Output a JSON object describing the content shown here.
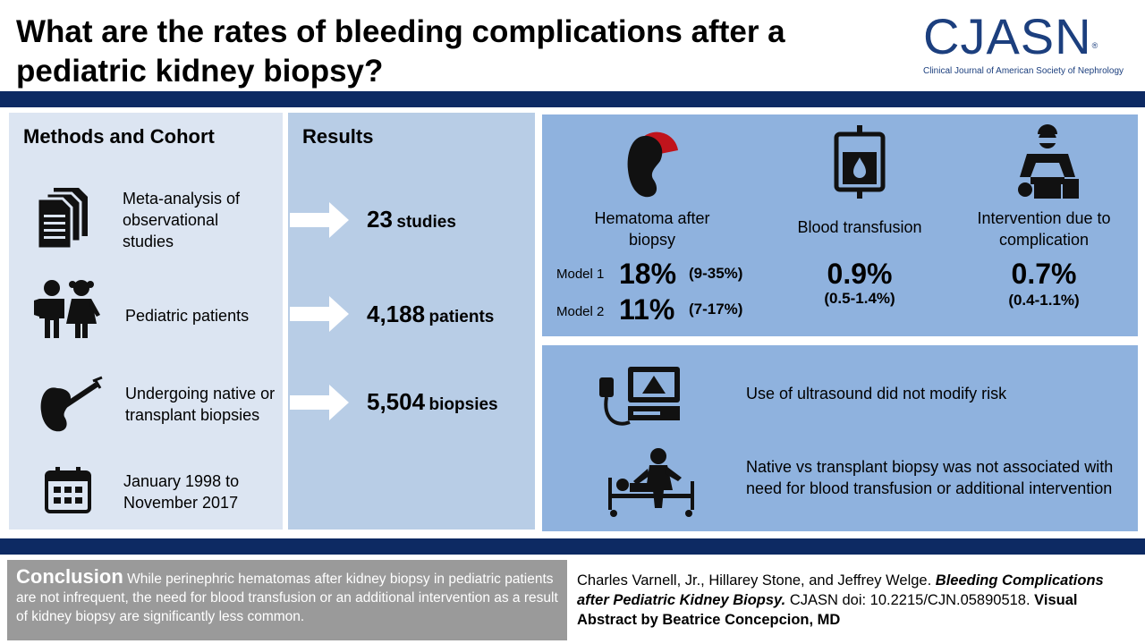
{
  "header": {
    "title": "What are the rates of bleeding complications after a pediatric kidney biopsy?",
    "logo_text": "CJASN",
    "logo_reg": "®",
    "logo_subtitle": "Clinical Journal of American Society of Nephrology"
  },
  "methods": {
    "heading": "Methods and Cohort",
    "items": [
      {
        "icon": "documents-icon",
        "text": "Meta-analysis of observational studies"
      },
      {
        "icon": "children-icon",
        "text": "Pediatric patients"
      },
      {
        "icon": "kidney-needle-icon",
        "text": "Undergoing native or transplant biopsies"
      },
      {
        "icon": "calendar-icon",
        "text": "January 1998 to November 2017"
      }
    ]
  },
  "results": {
    "heading": "Results",
    "items": [
      {
        "number": "23",
        "unit": "studies"
      },
      {
        "number": "4,188",
        "unit": "patients"
      },
      {
        "number": "5,504",
        "unit": "biopsies"
      }
    ]
  },
  "stats": {
    "hematoma": {
      "label": "Hematoma after biopsy",
      "icon": "kidney-hematoma-icon",
      "models": [
        {
          "label": "Model 1",
          "pct": "18%",
          "ci": "(9-35%)"
        },
        {
          "label": "Model 2",
          "pct": "11%",
          "ci": "(7-17%)"
        }
      ]
    },
    "transfusion": {
      "label": "Blood transfusion",
      "icon": "blood-bag-icon",
      "pct": "0.9%",
      "ci": "(0.5-1.4%)"
    },
    "intervention": {
      "label": "Intervention due to complication",
      "icon": "surgeon-icon",
      "pct": "0.7%",
      "ci": "(0.4-1.1%)"
    }
  },
  "notes": [
    {
      "icon": "ultrasound-icon",
      "text": "Use of ultrasound did not modify risk"
    },
    {
      "icon": "hospital-bed-icon",
      "text": "Native vs transplant biopsy was not associated with need for blood transfusion or additional intervention"
    }
  ],
  "footer": {
    "conclusion_heading": "Conclusion",
    "conclusion_text": "While perinephric hematomas after kidney biopsy in pediatric patients are not infrequent, the need for blood transfusion or an additional intervention as a result of kidney biopsy are significantly less common.",
    "authors": "Charles Varnell, Jr., Hillarey Stone, and Jeffrey Welge.",
    "article_title": "Bleeding Complications after Pediatric Kidney Biopsy.",
    "doi": "CJASN doi: 10.2215/CJN.05890518.",
    "credit": "Visual Abstract by Beatrice Concepcion, MD"
  },
  "colors": {
    "navy": "#0d2a63",
    "logo_blue": "#1c3f7e",
    "methods_bg": "#dce5f2",
    "results_bg": "#b8cde6",
    "stats_bg": "#8fb2de",
    "hematoma_red": "#c0141c",
    "conclusion_bg": "#9a9a9a"
  }
}
